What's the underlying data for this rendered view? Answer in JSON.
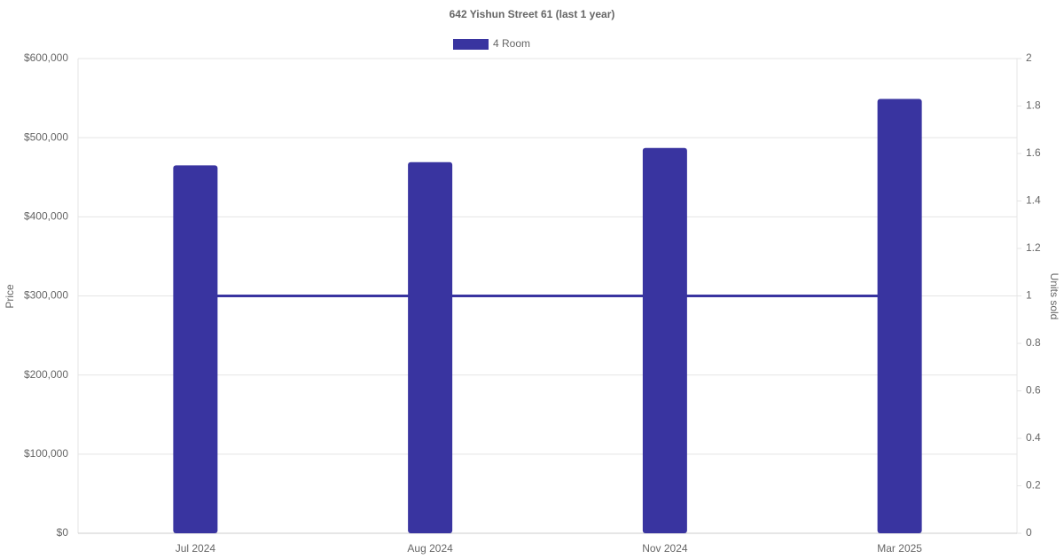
{
  "chart_data": {
    "type": "bar",
    "title": "642 Yishun Street 61 (last 1 year)",
    "categories": [
      "Jul 2024",
      "Aug 2024",
      "Nov 2024",
      "Mar 2025"
    ],
    "series": [
      {
        "name": "4 Room",
        "type": "bar",
        "color": "#3934a0",
        "values": [
          465000,
          469000,
          487000,
          549000
        ]
      },
      {
        "type": "line",
        "axis": "y2",
        "color": "#3934a0",
        "values": [
          1,
          1,
          1,
          1
        ]
      }
    ],
    "y_label": "Price",
    "y2_label": "Units sold",
    "ylim": [
      0,
      600000
    ],
    "yticks": [
      {
        "value": 0,
        "label": "$0"
      },
      {
        "value": 100000,
        "label": "$100,000"
      },
      {
        "value": 200000,
        "label": "$200,000"
      },
      {
        "value": 300000,
        "label": "$300,000"
      },
      {
        "value": 400000,
        "label": "$400,000"
      },
      {
        "value": 500000,
        "label": "$500,000"
      },
      {
        "value": 600000,
        "label": "$600,000"
      }
    ],
    "y2lim": [
      0,
      2
    ],
    "y2ticks": [
      0,
      0.2,
      0.4,
      0.6,
      0.8,
      1,
      1.2,
      1.4,
      1.6,
      1.8,
      2
    ],
    "grid": true,
    "legend": "top"
  }
}
